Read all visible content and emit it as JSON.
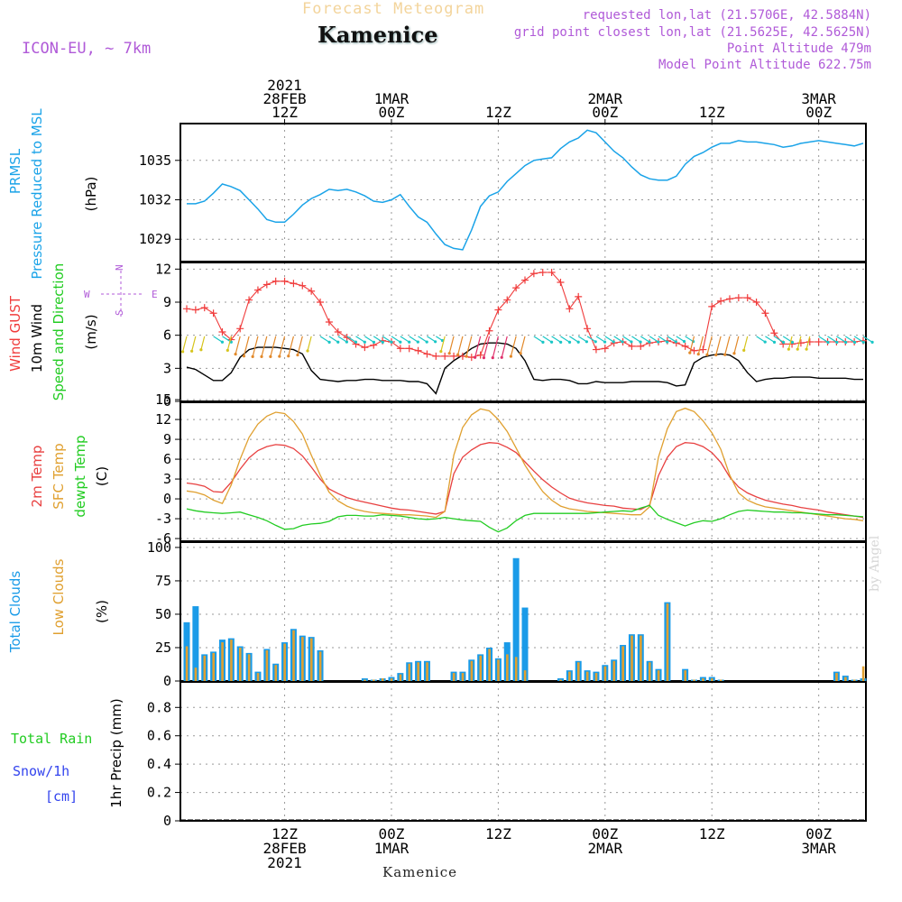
{
  "header": {
    "product": "Forecast Meteogram",
    "station": "Kamenice",
    "model": "ICON-EU, ~ 7km",
    "requested": "requested lon,lat (21.5706E, 42.5884N)",
    "gridpoint": "grid point closest lon,lat (21.5625E, 42.5625N)",
    "point_alt": "Point Altitude 479m",
    "model_alt": "Model Point Altitude 622.75m",
    "watermark": "by Angel",
    "footer": "Kamenice"
  },
  "time_axis": {
    "top_labels": [
      {
        "t": 12,
        "lines": [
          "2021",
          "28FEB",
          "12Z"
        ]
      },
      {
        "t": 24,
        "lines": [
          "1MAR",
          "00Z"
        ]
      },
      {
        "t": 36,
        "lines": [
          "12Z"
        ]
      },
      {
        "t": 48,
        "lines": [
          "2MAR",
          "00Z"
        ]
      },
      {
        "t": 60,
        "lines": [
          "12Z"
        ]
      },
      {
        "t": 72,
        "lines": [
          "3MAR",
          "00Z"
        ]
      }
    ],
    "bottom_labels": [
      {
        "t": 12,
        "lines": [
          "12Z",
          "28FEB",
          "2021"
        ]
      },
      {
        "t": 24,
        "lines": [
          "00Z",
          "1MAR"
        ]
      },
      {
        "t": 36,
        "lines": [
          "12Z"
        ]
      },
      {
        "t": 48,
        "lines": [
          "00Z",
          "2MAR"
        ]
      },
      {
        "t": 60,
        "lines": [
          "12Z"
        ]
      },
      {
        "t": 72,
        "lines": [
          "00Z",
          "3MAR"
        ]
      }
    ],
    "t_start": 1,
    "t_end": 77
  },
  "colors": {
    "pressure": "#1aa3e8",
    "gust": "#f03c3c",
    "wind": "#000000",
    "t2m": "#e84040",
    "sfc": "#e0a030",
    "dewpt": "#22cc22",
    "total_clouds": "#1a9be8",
    "low_clouds": "#e0a030",
    "rain": "#22cc22",
    "snow": "#3344ee",
    "purple": "#b05ad8",
    "grid": "#999999"
  },
  "panels": {
    "pressure": {
      "labels": [
        "PRMSL",
        "Pressure Reduced to MSL",
        "(hPa)"
      ],
      "yticks": [
        1029,
        1032,
        1035
      ],
      "ylim": [
        1027.3,
        1037.8
      ]
    },
    "wind": {
      "labels": [
        "Wind GUST",
        "10m Wind",
        "Speed and Direction",
        "(m/s)"
      ],
      "yticks": [
        0,
        3,
        6,
        9,
        12
      ],
      "ylim": [
        0,
        12.6
      ],
      "compass": {
        "n": "N",
        "s": "S",
        "w": "W",
        "e": "E"
      }
    },
    "temp": {
      "labels": [
        "2m Temp",
        "SFC Temp",
        "dewpt Temp",
        "(C)"
      ],
      "yticks": [
        -6,
        -3,
        0,
        3,
        6,
        9,
        12,
        15
      ],
      "ylim": [
        -6.4,
        14.6
      ]
    },
    "clouds": {
      "labels": [
        "Total Clouds",
        "Low Clouds",
        "(%)"
      ],
      "yticks": [
        0,
        25,
        50,
        75,
        100
      ],
      "ylim": [
        0,
        104
      ]
    },
    "precip": {
      "labels": [
        "Total Rain",
        "Snow/1h",
        "[cm]",
        "1hr Precip (mm)"
      ],
      "yticks": [
        0,
        0.2,
        0.4,
        0.6,
        0.8
      ],
      "ylim": [
        0,
        0.98
      ]
    }
  },
  "chart_data": [
    {
      "type": "line",
      "title": "PRMSL Pressure Reduced to MSL",
      "ylabel": "hPa",
      "x": [
        1,
        2,
        3,
        4,
        5,
        6,
        7,
        8,
        9,
        10,
        11,
        12,
        13,
        14,
        15,
        16,
        17,
        18,
        19,
        20,
        21,
        22,
        23,
        24,
        25,
        26,
        27,
        28,
        29,
        30,
        31,
        32,
        33,
        34,
        35,
        36,
        37,
        38,
        39,
        40,
        41,
        42,
        43,
        44,
        45,
        46,
        47,
        48,
        49,
        50,
        51,
        52,
        53,
        54,
        55,
        56,
        57,
        58,
        59,
        60,
        61,
        62,
        63,
        64,
        65,
        66,
        67,
        68,
        69,
        70,
        71,
        72,
        73,
        74,
        75,
        76,
        77
      ],
      "values": [
        1031.7,
        1031.7,
        1031.9,
        1032.5,
        1033.2,
        1033.0,
        1032.7,
        1032.0,
        1031.3,
        1030.5,
        1030.3,
        1030.3,
        1030.9,
        1031.6,
        1032.1,
        1032.4,
        1032.8,
        1032.7,
        1032.8,
        1032.6,
        1032.3,
        1031.9,
        1031.8,
        1032.0,
        1032.4,
        1031.5,
        1030.7,
        1030.3,
        1029.4,
        1028.6,
        1028.3,
        1028.2,
        1029.7,
        1031.5,
        1032.3,
        1032.6,
        1033.4,
        1034.0,
        1034.6,
        1035.0,
        1035.1,
        1035.2,
        1035.9,
        1036.4,
        1036.7,
        1037.3,
        1037.1,
        1036.4,
        1035.7,
        1035.2,
        1034.5,
        1033.9,
        1033.6,
        1033.5,
        1033.5,
        1033.8,
        1034.7,
        1035.3,
        1035.6,
        1036.0,
        1036.3,
        1036.3,
        1036.5,
        1036.4,
        1036.4,
        1036.3,
        1036.2,
        1036.0,
        1036.1,
        1036.3,
        1036.4,
        1036.5,
        1036.4,
        1036.3,
        1036.2,
        1036.1,
        1036.3
      ]
    },
    {
      "type": "line",
      "title": "Wind GUST / 10m Wind",
      "ylabel": "m/s",
      "x": [
        1,
        2,
        3,
        4,
        5,
        6,
        7,
        8,
        9,
        10,
        11,
        12,
        13,
        14,
        15,
        16,
        17,
        18,
        19,
        20,
        21,
        22,
        23,
        24,
        25,
        26,
        27,
        28,
        29,
        30,
        31,
        32,
        33,
        34,
        35,
        36,
        37,
        38,
        39,
        40,
        41,
        42,
        43,
        44,
        45,
        46,
        47,
        48,
        49,
        50,
        51,
        52,
        53,
        54,
        55,
        56,
        57,
        58,
        59,
        60,
        61,
        62,
        63,
        64,
        65,
        66,
        67,
        68,
        69,
        70,
        71,
        72,
        73,
        74,
        75,
        76,
        77
      ],
      "series": [
        {
          "name": "Wind GUST",
          "values": [
            8.4,
            8.3,
            8.5,
            8.0,
            6.3,
            5.6,
            6.6,
            9.2,
            10.1,
            10.6,
            10.9,
            10.9,
            10.7,
            10.5,
            10.0,
            9.0,
            7.2,
            6.3,
            5.8,
            5.2,
            4.9,
            5.1,
            5.5,
            5.4,
            4.8,
            4.8,
            4.6,
            4.3,
            4.1,
            4.1,
            4.1,
            4.1,
            4.0,
            4.2,
            6.4,
            8.3,
            9.2,
            10.3,
            11.0,
            11.6,
            11.7,
            11.7,
            10.8,
            8.4,
            9.5,
            6.6,
            4.7,
            4.8,
            5.3,
            5.4,
            5.0,
            5.0,
            5.3,
            5.4,
            5.5,
            5.3,
            5.0,
            4.6,
            4.7,
            8.6,
            9.1,
            9.3,
            9.4,
            9.4,
            9.0,
            8.0,
            6.2,
            5.2,
            5.2,
            5.3,
            5.4,
            5.4,
            5.4,
            5.4,
            5.4,
            5.4,
            5.5
          ]
        },
        {
          "name": "10m Wind",
          "values": [
            3.1,
            2.9,
            2.4,
            1.9,
            1.9,
            2.6,
            4.0,
            4.7,
            4.9,
            4.9,
            4.9,
            4.8,
            4.7,
            4.3,
            2.8,
            2.0,
            1.9,
            1.8,
            1.9,
            1.9,
            2.0,
            2.0,
            1.9,
            1.9,
            1.9,
            1.8,
            1.8,
            1.6,
            0.7,
            3.0,
            3.7,
            4.2,
            4.8,
            5.2,
            5.3,
            5.3,
            5.2,
            4.8,
            3.7,
            2.0,
            1.9,
            2.0,
            2.0,
            1.9,
            1.6,
            1.6,
            1.8,
            1.7,
            1.7,
            1.7,
            1.8,
            1.8,
            1.8,
            1.8,
            1.7,
            1.4,
            1.5,
            3.5,
            4.0,
            4.2,
            4.3,
            4.2,
            3.7,
            2.6,
            1.8,
            2.0,
            2.1,
            2.1,
            2.2,
            2.2,
            2.2,
            2.1,
            2.1,
            2.1,
            2.1,
            2.0,
            2.0
          ]
        }
      ]
    },
    {
      "type": "line",
      "title": "2m Temp / SFC Temp / dewpt Temp",
      "ylabel": "C",
      "x": [
        1,
        2,
        3,
        4,
        5,
        6,
        7,
        8,
        9,
        10,
        11,
        12,
        13,
        14,
        15,
        16,
        17,
        18,
        19,
        20,
        21,
        22,
        23,
        24,
        25,
        26,
        27,
        28,
        29,
        30,
        31,
        32,
        33,
        34,
        35,
        36,
        37,
        38,
        39,
        40,
        41,
        42,
        43,
        44,
        45,
        46,
        47,
        48,
        49,
        50,
        51,
        52,
        53,
        54,
        55,
        56,
        57,
        58,
        59,
        60,
        61,
        62,
        63,
        64,
        65,
        66,
        67,
        68,
        69,
        70,
        71,
        72,
        73,
        74,
        75,
        76,
        77
      ],
      "series": [
        {
          "name": "2m Temp",
          "values": [
            2.4,
            2.2,
            1.9,
            1.1,
            1.0,
            2.5,
            4.5,
            6.2,
            7.3,
            7.9,
            8.2,
            8.1,
            7.6,
            6.5,
            4.8,
            3.0,
            1.5,
            0.8,
            0.2,
            -0.2,
            -0.5,
            -0.8,
            -1.1,
            -1.4,
            -1.6,
            -1.7,
            -1.9,
            -2.1,
            -2.3,
            -1.9,
            3.8,
            6.3,
            7.4,
            8.2,
            8.5,
            8.4,
            7.8,
            7.0,
            5.6,
            4.2,
            2.9,
            1.8,
            0.9,
            0.1,
            -0.3,
            -0.6,
            -0.8,
            -1.0,
            -1.1,
            -1.4,
            -1.5,
            -1.6,
            -0.9,
            3.5,
            6.3,
            7.9,
            8.5,
            8.4,
            7.9,
            7.0,
            5.5,
            3.3,
            1.8,
            0.9,
            0.3,
            -0.2,
            -0.5,
            -0.8,
            -1.0,
            -1.3,
            -1.5,
            -1.7,
            -2.0,
            -2.2,
            -2.4,
            -2.6,
            -2.8
          ]
        },
        {
          "name": "SFC Temp",
          "values": [
            1.2,
            1.0,
            0.6,
            -0.2,
            -0.7,
            2.1,
            6.0,
            9.3,
            11.3,
            12.5,
            13.1,
            12.9,
            11.7,
            9.8,
            6.6,
            3.6,
            1.0,
            -0.3,
            -1.1,
            -1.6,
            -1.9,
            -2.1,
            -2.2,
            -2.3,
            -2.4,
            -2.4,
            -2.5,
            -2.6,
            -2.8,
            -1.9,
            6.6,
            10.8,
            12.7,
            13.6,
            13.3,
            12.0,
            10.2,
            7.7,
            5.1,
            3.0,
            1.1,
            -0.2,
            -1.1,
            -1.5,
            -1.7,
            -1.9,
            -2.0,
            -2.1,
            -2.2,
            -2.3,
            -2.4,
            -2.4,
            -1.2,
            6.3,
            10.6,
            13.2,
            13.7,
            13.2,
            11.8,
            10.0,
            7.5,
            3.6,
            0.9,
            -0.2,
            -0.8,
            -1.2,
            -1.4,
            -1.6,
            -1.8,
            -2.0,
            -2.2,
            -2.4,
            -2.6,
            -2.8,
            -3.0,
            -3.1,
            -3.3
          ]
        },
        {
          "name": "dewpt Temp",
          "values": [
            -1.5,
            -1.8,
            -2.0,
            -2.1,
            -2.2,
            -2.1,
            -2.0,
            -2.4,
            -2.8,
            -3.3,
            -4.0,
            -4.6,
            -4.5,
            -4.0,
            -3.8,
            -3.7,
            -3.4,
            -2.7,
            -2.5,
            -2.5,
            -2.6,
            -2.6,
            -2.4,
            -2.5,
            -2.6,
            -2.8,
            -3.0,
            -3.1,
            -3.0,
            -2.8,
            -3.0,
            -3.2,
            -3.3,
            -3.4,
            -4.3,
            -5.0,
            -4.4,
            -3.3,
            -2.5,
            -2.2,
            -2.2,
            -2.2,
            -2.2,
            -2.2,
            -2.2,
            -2.2,
            -2.1,
            -2.0,
            -1.9,
            -1.8,
            -1.9,
            -1.4,
            -1.0,
            -2.5,
            -3.1,
            -3.6,
            -4.1,
            -3.6,
            -3.3,
            -3.4,
            -3.0,
            -2.4,
            -1.9,
            -1.7,
            -1.8,
            -1.9,
            -2.0,
            -2.0,
            -2.1,
            -2.1,
            -2.2,
            -2.3,
            -2.4,
            -2.4,
            -2.5,
            -2.6,
            -2.7
          ]
        }
      ]
    },
    {
      "type": "bar",
      "title": "Total Clouds / Low Clouds",
      "ylabel": "%",
      "x": [
        1,
        2,
        3,
        4,
        5,
        6,
        7,
        8,
        9,
        10,
        11,
        12,
        13,
        14,
        15,
        16,
        17,
        18,
        19,
        20,
        21,
        22,
        23,
        24,
        25,
        26,
        27,
        28,
        29,
        30,
        31,
        32,
        33,
        34,
        35,
        36,
        37,
        38,
        39,
        40,
        41,
        42,
        43,
        44,
        45,
        46,
        47,
        48,
        49,
        50,
        51,
        52,
        53,
        54,
        55,
        56,
        57,
        58,
        59,
        60,
        61,
        62,
        63,
        64,
        65,
        66,
        67,
        68,
        69,
        70,
        71,
        72,
        73,
        74,
        75,
        76,
        77
      ],
      "series": [
        {
          "name": "Total Clouds",
          "values": [
            44,
            56,
            20,
            22,
            31,
            32,
            26,
            21,
            7,
            24,
            13,
            29,
            39,
            34,
            33,
            23,
            0,
            0,
            0,
            0,
            2,
            1,
            2,
            3,
            6,
            14,
            15,
            15,
            0,
            0,
            7,
            7,
            16,
            20,
            25,
            17,
            29,
            92,
            55,
            0,
            0,
            0,
            2,
            8,
            15,
            8,
            7,
            12,
            16,
            27,
            35,
            35,
            15,
            9,
            59,
            0,
            9,
            1,
            3,
            3,
            1,
            0,
            0,
            0,
            0,
            0,
            0,
            0,
            0,
            0,
            0,
            0,
            0,
            7,
            4,
            1,
            2
          ]
        },
        {
          "name": "Low Clouds",
          "values": [
            26,
            10,
            19,
            21,
            29,
            31,
            25,
            20,
            6,
            23,
            12,
            28,
            38,
            33,
            32,
            22,
            0,
            0,
            0,
            0,
            1,
            1,
            2,
            2,
            5,
            13,
            14,
            14,
            0,
            0,
            6,
            6,
            15,
            19,
            24,
            16,
            20,
            18,
            8,
            0,
            0,
            0,
            1,
            7,
            14,
            7,
            6,
            11,
            15,
            26,
            34,
            34,
            14,
            8,
            58,
            0,
            8,
            1,
            2,
            2,
            1,
            0,
            0,
            0,
            0,
            0,
            0,
            0,
            0,
            0,
            0,
            0,
            0,
            6,
            3,
            1,
            11
          ]
        }
      ]
    },
    {
      "type": "bar",
      "title": "Total Rain / Snow",
      "ylabel": "1hr Precip (mm)",
      "x": [
        1,
        13,
        25,
        37,
        49,
        61,
        73
      ],
      "series": [
        {
          "name": "Total Rain",
          "values": [
            0,
            0,
            0,
            0,
            0,
            0,
            0
          ]
        },
        {
          "name": "Snow/1h",
          "values": [
            0,
            0,
            0,
            0,
            0,
            0,
            0
          ]
        }
      ]
    }
  ]
}
